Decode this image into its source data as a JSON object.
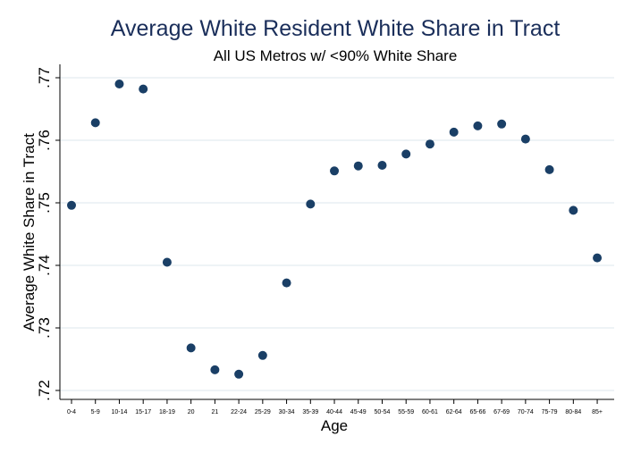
{
  "chart_data": {
    "type": "scatter",
    "title": "Average White Resident White Share in Tract",
    "subtitle": "All US Metros w/ <90% White Share",
    "xlabel": "Age",
    "ylabel": "Average White Share in Tract",
    "categories": [
      "0-4",
      "5-9",
      "10-14",
      "15-17",
      "18-19",
      "20",
      "21",
      "22-24",
      "25-29",
      "30-34",
      "35-39",
      "40-44",
      "45-49",
      "50-54",
      "55-59",
      "60-61",
      "62-64",
      "65-66",
      "67-69",
      "70-74",
      "75-79",
      "80-84",
      "85+"
    ],
    "values": [
      0.7496,
      0.7628,
      0.769,
      0.7682,
      0.7405,
      0.7268,
      0.7233,
      0.7226,
      0.7256,
      0.7372,
      0.7498,
      0.7551,
      0.7559,
      0.756,
      0.7578,
      0.7594,
      0.7613,
      0.7623,
      0.7626,
      0.7602,
      0.7553,
      0.7488,
      0.7412
    ],
    "ylim": [
      0.72,
      0.77
    ],
    "yticks": [
      ".72",
      ".73",
      ".74",
      ".75",
      ".76",
      ".77"
    ],
    "ytick_values": [
      0.72,
      0.73,
      0.74,
      0.75,
      0.76,
      0.77
    ],
    "grid": true,
    "colors": {
      "marker": "#1a3f66",
      "grid": "#dce7ec",
      "title": "#1a2e5a"
    }
  }
}
